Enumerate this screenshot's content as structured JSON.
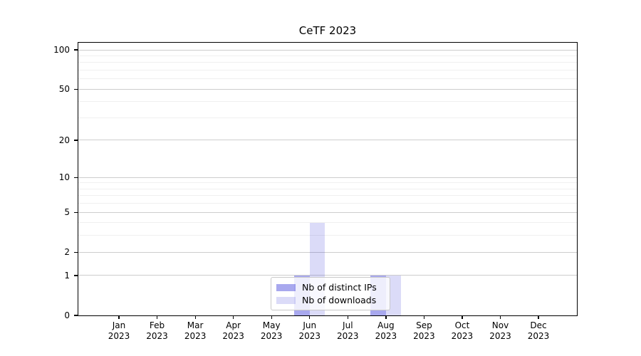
{
  "chart_data": {
    "type": "bar",
    "title": "CeTF 2023",
    "categories": [
      "Jan 2023",
      "Feb 2023",
      "Mar 2023",
      "Apr 2023",
      "May 2023",
      "Jun 2023",
      "Jul 2023",
      "Aug 2023",
      "Sep 2023",
      "Oct 2023",
      "Nov 2023",
      "Dec 2023"
    ],
    "x_tick_line1": [
      "Jan",
      "Feb",
      "Mar",
      "Apr",
      "May",
      "Jun",
      "Jul",
      "Aug",
      "Sep",
      "Oct",
      "Nov",
      "Dec"
    ],
    "x_tick_line2": [
      "2023",
      "2023",
      "2023",
      "2023",
      "2023",
      "2023",
      "2023",
      "2023",
      "2023",
      "2023",
      "2023",
      "2023"
    ],
    "series": [
      {
        "name": "Nb of distinct IPs",
        "color": "rgba(0,0,204,0.34)",
        "color_hex_on_white": "#a8a8ee",
        "values": [
          0,
          0,
          0,
          0,
          0,
          1,
          0,
          1,
          0,
          0,
          0,
          0
        ]
      },
      {
        "name": "Nb of downloads",
        "color": "rgba(0,0,204,0.14)",
        "color_hex_on_white": "#dbdbf8",
        "values": [
          0,
          0,
          0,
          0,
          0,
          4,
          0,
          1,
          0,
          0,
          0,
          0
        ]
      }
    ],
    "y_axis": {
      "scale": "log1p",
      "ticks": [
        0,
        1,
        2,
        5,
        10,
        20,
        50,
        100
      ],
      "minor_ticks": [
        3,
        4,
        6,
        7,
        8,
        9,
        30,
        40,
        60,
        70,
        80,
        90
      ],
      "range_top": 113
    },
    "legend": {
      "position": "lower center"
    },
    "grid": true,
    "colors": {
      "grid_major": "#cdcdcd",
      "grid_minor": "#f0f0f0",
      "axis": "#000000",
      "background": "#ffffff",
      "legend_border": "#c9c9c9"
    }
  }
}
